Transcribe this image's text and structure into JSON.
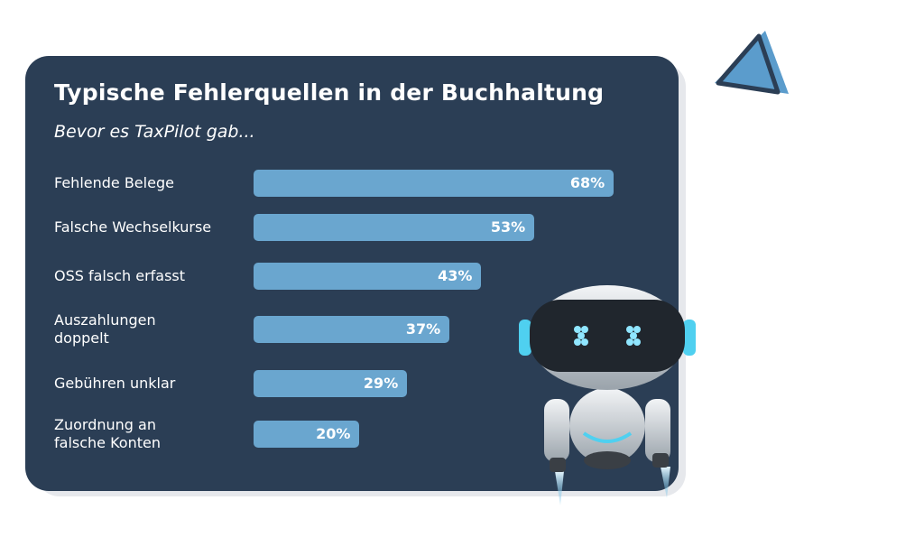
{
  "chart_data": {
    "type": "bar",
    "orientation": "horizontal",
    "title": "Typische Fehlerquellen in der Buchhaltung",
    "subtitle": "Bevor es TaxPilot gab...",
    "unit": "%",
    "xlim": [
      0,
      100
    ],
    "grid": false,
    "bar_color": "#6aa6cf",
    "background_color": "#2b3e55",
    "categories": [
      [
        "Fehlende Belege"
      ],
      [
        "Falsche Wechselkurse"
      ],
      [
        "OSS falsch erfasst"
      ],
      [
        "Auszahlungen",
        "doppelt"
      ],
      [
        "Gebühren unklar"
      ],
      [
        "Zuordnung an",
        "falsche Konten"
      ]
    ],
    "values": [
      68,
      53,
      43,
      37,
      29,
      20
    ],
    "value_labels": [
      "68%",
      "53%",
      "43%",
      "37%",
      "29%",
      "20%"
    ]
  },
  "icons": {
    "mascot": "robot-mascot-icon",
    "logo": "paper-plane-logo-icon"
  },
  "colors": {
    "accent": "#6aa6cf",
    "card": "#2b3e55",
    "robot_glow": "#4fd0f0"
  }
}
